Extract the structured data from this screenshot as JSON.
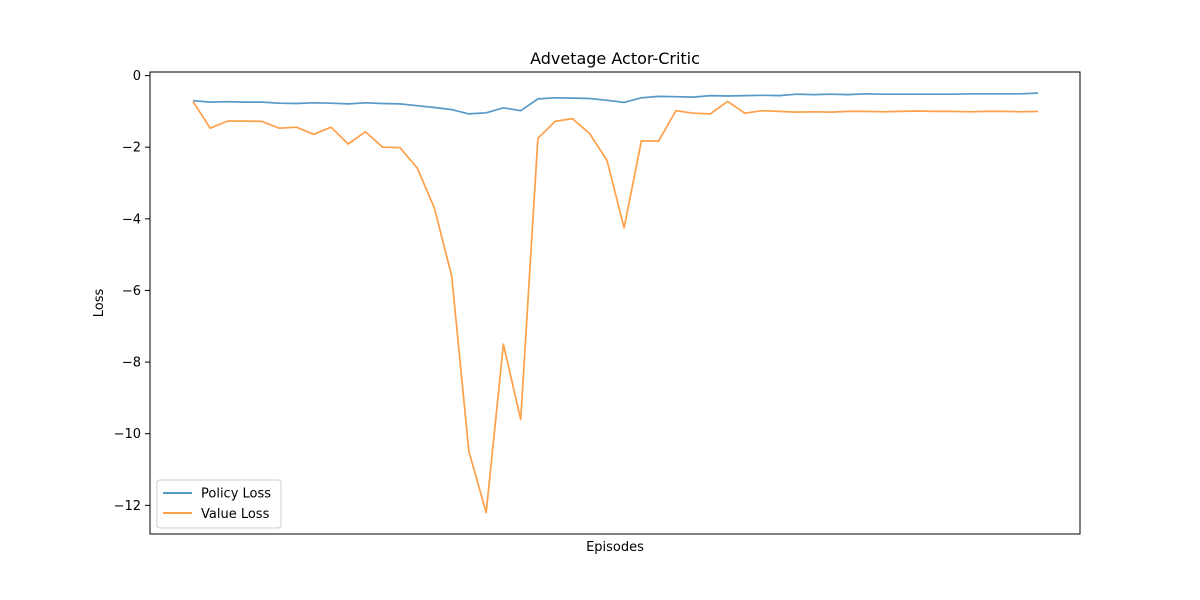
{
  "chart_data": {
    "type": "line",
    "title": "Advetage Actor-Critic",
    "xlabel": "Episodes",
    "ylabel": "Loss",
    "ylim": [
      -12.8,
      0.1
    ],
    "yticks": [
      0,
      -2,
      -4,
      -6,
      -8,
      -10,
      -12
    ],
    "ytick_labels": [
      "0",
      "−2",
      "−4",
      "−6",
      "−8",
      "−10",
      "−12"
    ],
    "xticks_shown": false,
    "grid": false,
    "legend_position": "lower-left",
    "x": [
      0,
      1,
      2,
      3,
      4,
      5,
      6,
      7,
      8,
      9,
      10,
      11,
      12,
      13,
      14,
      15,
      16,
      17,
      18,
      19,
      20,
      21,
      22,
      23,
      24,
      25,
      26,
      27,
      28,
      29,
      30,
      31,
      32,
      33,
      34,
      35,
      36,
      37,
      38,
      39,
      40,
      41,
      42,
      43,
      44,
      45,
      46,
      47,
      48,
      49
    ],
    "series": [
      {
        "name": "Policy Loss",
        "color": "#1f77b4",
        "values": [
          -0.7,
          -0.74,
          -0.73,
          -0.74,
          -0.74,
          -0.77,
          -0.78,
          -0.76,
          -0.77,
          -0.79,
          -0.76,
          -0.78,
          -0.79,
          -0.84,
          -0.89,
          -0.95,
          -1.07,
          -1.04,
          -0.9,
          -0.98,
          -0.65,
          -0.62,
          -0.63,
          -0.64,
          -0.69,
          -0.75,
          -0.62,
          -0.58,
          -0.59,
          -0.6,
          -0.56,
          -0.57,
          -0.56,
          -0.55,
          -0.56,
          -0.52,
          -0.53,
          -0.52,
          -0.53,
          -0.51,
          -0.52,
          -0.52,
          -0.52,
          -0.52,
          -0.52,
          -0.51,
          -0.51,
          -0.51,
          -0.51,
          -0.49
        ]
      },
      {
        "name": "Value Loss",
        "color": "#ff7f0e",
        "values": [
          -0.72,
          -1.47,
          -1.27,
          -1.27,
          -1.28,
          -1.47,
          -1.44,
          -1.64,
          -1.44,
          -1.91,
          -1.57,
          -2.0,
          -2.01,
          -2.58,
          -3.7,
          -5.6,
          -10.5,
          -12.2,
          -7.5,
          -9.6,
          -1.75,
          -1.28,
          -1.2,
          -1.62,
          -2.36,
          -4.25,
          -1.82,
          -1.83,
          -0.98,
          -1.05,
          -1.07,
          -0.72,
          -1.05,
          -0.98,
          -1.0,
          -1.02,
          -1.01,
          -1.02,
          -1.0,
          -1.0,
          -1.01,
          -1.0,
          -0.99,
          -1.0,
          -1.0,
          -1.01,
          -1.0,
          -1.0,
          -1.01,
          -1.0
        ]
      }
    ]
  }
}
